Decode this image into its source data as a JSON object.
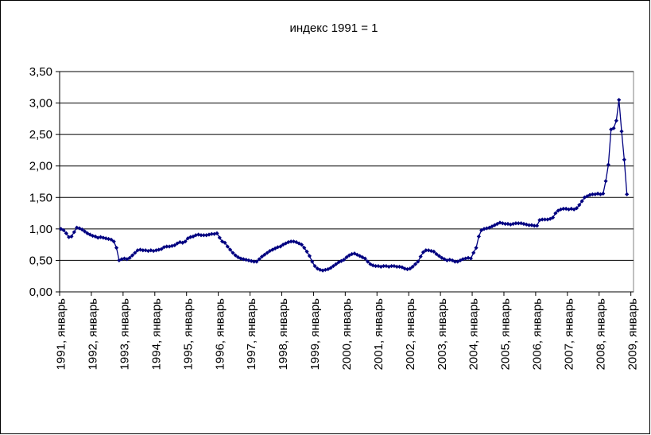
{
  "chart_data": {
    "type": "line",
    "title": "индекс 1991 = 1",
    "categories": [
      "1991, январь",
      null,
      null,
      null,
      null,
      null,
      null,
      null,
      null,
      null,
      null,
      null,
      "1992, январь",
      null,
      null,
      null,
      null,
      null,
      null,
      null,
      null,
      null,
      null,
      null,
      "1993, январь",
      null,
      null,
      null,
      null,
      null,
      null,
      null,
      null,
      null,
      null,
      null,
      "1994, январь",
      null,
      null,
      null,
      null,
      null,
      null,
      null,
      null,
      null,
      null,
      null,
      "1995, январь",
      null,
      null,
      null,
      null,
      null,
      null,
      null,
      null,
      null,
      null,
      null,
      "1996, январь",
      null,
      null,
      null,
      null,
      null,
      null,
      null,
      null,
      null,
      null,
      null,
      "1997, январь",
      null,
      null,
      null,
      null,
      null,
      null,
      null,
      null,
      null,
      null,
      null,
      "1998, январь",
      null,
      null,
      null,
      null,
      null,
      null,
      null,
      null,
      null,
      null,
      null,
      "1999, январь",
      null,
      null,
      null,
      null,
      null,
      null,
      null,
      null,
      null,
      null,
      null,
      "2000, январь",
      null,
      null,
      null,
      null,
      null,
      null,
      null,
      null,
      null,
      null,
      null,
      "2001, январь",
      null,
      null,
      null,
      null,
      null,
      null,
      null,
      null,
      null,
      null,
      null,
      "2002, январь",
      null,
      null,
      null,
      null,
      null,
      null,
      null,
      null,
      null,
      null,
      null,
      "2003, январь",
      null,
      null,
      null,
      null,
      null,
      null,
      null,
      null,
      null,
      null,
      null,
      "2004, январь",
      null,
      null,
      null,
      null,
      null,
      null,
      null,
      null,
      null,
      null,
      null,
      "2005, январь",
      null,
      null,
      null,
      null,
      null,
      null,
      null,
      null,
      null,
      null,
      null,
      "2006, январь",
      null,
      null,
      null,
      null,
      null,
      null,
      null,
      null,
      null,
      null,
      null,
      "2007, январь",
      null,
      null,
      null,
      null,
      null,
      null,
      null,
      null,
      null,
      null,
      null,
      "2008, январь",
      null,
      null,
      null,
      null,
      null,
      null,
      null,
      null,
      null,
      null,
      null,
      "2009, январь"
    ],
    "series": [
      {
        "color": "#000080",
        "values": [
          1.0,
          0.98,
          0.93,
          0.87,
          0.88,
          0.95,
          1.02,
          1.01,
          0.99,
          0.96,
          0.93,
          0.91,
          0.89,
          0.88,
          0.86,
          0.87,
          0.86,
          0.85,
          0.84,
          0.83,
          0.8,
          0.7,
          0.5,
          0.52,
          0.53,
          0.52,
          0.54,
          0.58,
          0.62,
          0.66,
          0.67,
          0.66,
          0.66,
          0.65,
          0.66,
          0.65,
          0.66,
          0.67,
          0.68,
          0.71,
          0.72,
          0.72,
          0.73,
          0.74,
          0.77,
          0.79,
          0.78,
          0.8,
          0.85,
          0.87,
          0.88,
          0.9,
          0.91,
          0.9,
          0.9,
          0.9,
          0.91,
          0.92,
          0.92,
          0.93,
          0.86,
          0.8,
          0.78,
          0.72,
          0.67,
          0.62,
          0.58,
          0.55,
          0.53,
          0.52,
          0.51,
          0.5,
          0.49,
          0.48,
          0.48,
          0.52,
          0.56,
          0.59,
          0.62,
          0.65,
          0.67,
          0.69,
          0.71,
          0.72,
          0.75,
          0.77,
          0.79,
          0.8,
          0.8,
          0.79,
          0.77,
          0.75,
          0.7,
          0.64,
          0.57,
          0.48,
          0.41,
          0.37,
          0.35,
          0.34,
          0.35,
          0.36,
          0.38,
          0.41,
          0.44,
          0.47,
          0.49,
          0.51,
          0.55,
          0.58,
          0.6,
          0.61,
          0.59,
          0.57,
          0.55,
          0.53,
          0.48,
          0.44,
          0.42,
          0.41,
          0.41,
          0.4,
          0.41,
          0.41,
          0.4,
          0.41,
          0.41,
          0.4,
          0.4,
          0.39,
          0.37,
          0.36,
          0.37,
          0.4,
          0.44,
          0.48,
          0.56,
          0.63,
          0.66,
          0.66,
          0.65,
          0.64,
          0.6,
          0.57,
          0.54,
          0.52,
          0.5,
          0.51,
          0.5,
          0.48,
          0.48,
          0.5,
          0.52,
          0.53,
          0.54,
          0.53,
          0.62,
          0.7,
          0.88,
          0.98,
          1.0,
          1.01,
          1.02,
          1.04,
          1.06,
          1.08,
          1.1,
          1.09,
          1.08,
          1.08,
          1.07,
          1.08,
          1.09,
          1.09,
          1.09,
          1.08,
          1.07,
          1.06,
          1.06,
          1.05,
          1.05,
          1.14,
          1.15,
          1.15,
          1.15,
          1.16,
          1.18,
          1.25,
          1.29,
          1.31,
          1.32,
          1.32,
          1.31,
          1.32,
          1.31,
          1.33,
          1.38,
          1.44,
          1.5,
          1.52,
          1.54,
          1.55,
          1.55,
          1.56,
          1.55,
          1.56,
          1.76,
          2.02,
          2.58,
          2.6,
          2.72,
          3.05,
          2.55,
          2.1,
          1.55,
          null,
          null
        ]
      }
    ],
    "ylim": [
      0,
      3.5
    ],
    "yticks": [
      {
        "value": 0,
        "label": "0,00"
      },
      {
        "value": 0.5,
        "label": "0,50"
      },
      {
        "value": 1,
        "label": "1,00"
      },
      {
        "value": 1.5,
        "label": "1,50"
      },
      {
        "value": 2,
        "label": "2,00"
      },
      {
        "value": 2.5,
        "label": "2,50"
      },
      {
        "value": 3,
        "label": "3,00"
      },
      {
        "value": 3.5,
        "label": "3,50"
      }
    ],
    "grid": true
  }
}
